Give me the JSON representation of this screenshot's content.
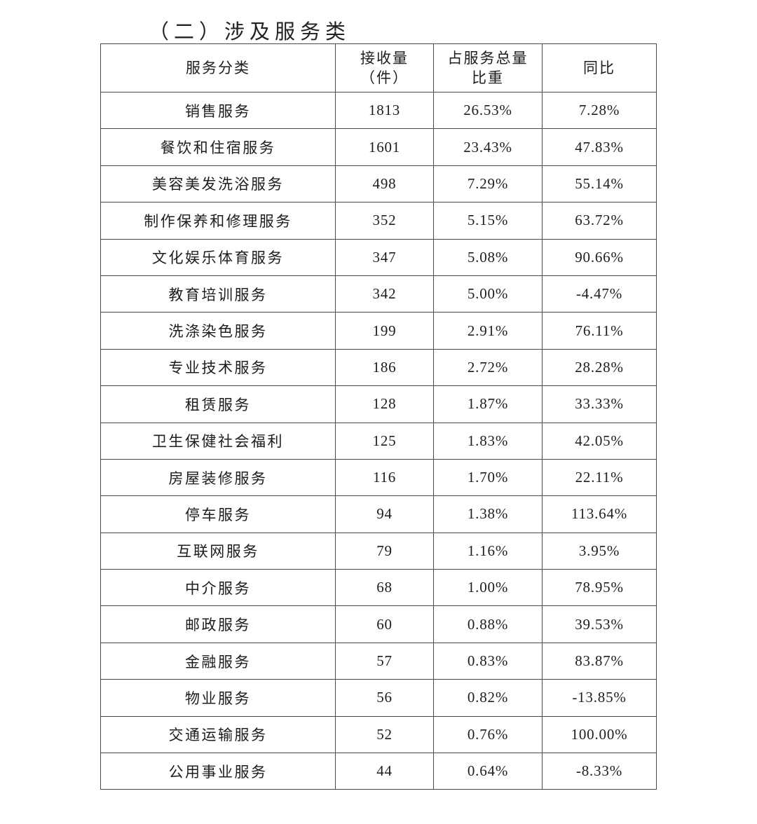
{
  "page": {
    "title": "（二）涉及服务类"
  },
  "table": {
    "headers": [
      "服务分类",
      "接收量\n（件）",
      "占服务总量\n比重",
      "同比"
    ],
    "rows": [
      {
        "category": "销售服务",
        "received": "1813",
        "share": "26.53%",
        "yoy": "7.28%"
      },
      {
        "category": "餐饮和住宿服务",
        "received": "1601",
        "share": "23.43%",
        "yoy": "47.83%"
      },
      {
        "category": "美容美发洗浴服务",
        "received": "498",
        "share": "7.29%",
        "yoy": "55.14%"
      },
      {
        "category": "制作保养和修理服务",
        "received": "352",
        "share": "5.15%",
        "yoy": "63.72%"
      },
      {
        "category": "文化娱乐体育服务",
        "received": "347",
        "share": "5.08%",
        "yoy": "90.66%"
      },
      {
        "category": "教育培训服务",
        "received": "342",
        "share": "5.00%",
        "yoy": "-4.47%"
      },
      {
        "category": "洗涤染色服务",
        "received": "199",
        "share": "2.91%",
        "yoy": "76.11%"
      },
      {
        "category": "专业技术服务",
        "received": "186",
        "share": "2.72%",
        "yoy": "28.28%"
      },
      {
        "category": "租赁服务",
        "received": "128",
        "share": "1.87%",
        "yoy": "33.33%"
      },
      {
        "category": "卫生保健社会福利",
        "received": "125",
        "share": "1.83%",
        "yoy": "42.05%"
      },
      {
        "category": "房屋装修服务",
        "received": "116",
        "share": "1.70%",
        "yoy": "22.11%"
      },
      {
        "category": "停车服务",
        "received": "94",
        "share": "1.38%",
        "yoy": "113.64%"
      },
      {
        "category": "互联网服务",
        "received": "79",
        "share": "1.16%",
        "yoy": "3.95%"
      },
      {
        "category": "中介服务",
        "received": "68",
        "share": "1.00%",
        "yoy": "78.95%"
      },
      {
        "category": "邮政服务",
        "received": "60",
        "share": "0.88%",
        "yoy": "39.53%"
      },
      {
        "category": "金融服务",
        "received": "57",
        "share": "0.83%",
        "yoy": "83.87%"
      },
      {
        "category": "物业服务",
        "received": "56",
        "share": "0.82%",
        "yoy": "-13.85%"
      },
      {
        "category": "交通运输服务",
        "received": "52",
        "share": "0.76%",
        "yoy": "100.00%"
      },
      {
        "category": "公用事业服务",
        "received": "44",
        "share": "0.64%",
        "yoy": "-8.33%"
      }
    ]
  }
}
